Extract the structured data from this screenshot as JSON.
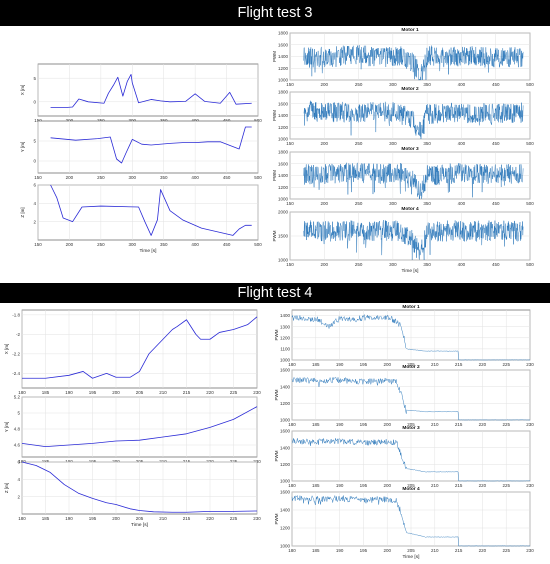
{
  "titles": {
    "test3": "Flight test 3",
    "test4": "Flight test 4"
  },
  "colors": {
    "position_line": "#2b2bd6",
    "motor_line": "#1f6fb6",
    "banner_bg": "#000000",
    "banner_text": "#ffffff"
  },
  "chart_data": [
    {
      "type": "line",
      "group": "test3",
      "ylabel": "X [m]",
      "xlim": [
        150,
        500
      ],
      "ylim": [
        -3,
        8
      ],
      "xticks": [
        150,
        200,
        250,
        300,
        350,
        400,
        450,
        500
      ],
      "yticks": [
        0,
        5
      ],
      "x": [
        170,
        195,
        205,
        215,
        230,
        255,
        262,
        270,
        277,
        285,
        292,
        298,
        300,
        310,
        330,
        345,
        360,
        385,
        400,
        415,
        440,
        455,
        465,
        490
      ],
      "y": [
        -1.2,
        -1.2,
        -1.1,
        0.6,
        0,
        -0.3,
        1.8,
        3.5,
        5.2,
        1.2,
        4.3,
        5.8,
        4.0,
        -0.2,
        0.5,
        0.2,
        0,
        0.1,
        1.7,
        0.1,
        -0.3,
        2.0,
        -0.5,
        -0.3
      ]
    },
    {
      "type": "line",
      "group": "test3",
      "ylabel": "Y [m]",
      "xlim": [
        150,
        500
      ],
      "ylim": [
        -3,
        10
      ],
      "xticks": [
        150,
        200,
        250,
        300,
        350,
        400,
        450,
        500
      ],
      "yticks": [
        0,
        5
      ],
      "x": [
        170,
        210,
        245,
        265,
        275,
        283,
        290,
        300,
        315,
        330,
        360,
        380,
        400,
        420,
        440,
        470,
        480,
        490
      ],
      "y": [
        5.8,
        5.2,
        5.6,
        6.0,
        0.5,
        -0.5,
        2.0,
        5.4,
        4.2,
        4.0,
        4.4,
        4.6,
        4.6,
        4.8,
        4.8,
        3.0,
        8.5,
        8.5
      ]
    },
    {
      "type": "line",
      "group": "test3",
      "xlabel": "Time [s]",
      "ylabel": "Z [m]",
      "xlim": [
        150,
        500
      ],
      "ylim": [
        0,
        6
      ],
      "xticks": [
        150,
        200,
        250,
        300,
        350,
        400,
        450,
        500
      ],
      "yticks": [
        2,
        4,
        6
      ],
      "x": [
        170,
        180,
        190,
        205,
        220,
        250,
        310,
        320,
        330,
        340,
        345,
        360,
        380,
        410,
        460,
        470,
        480,
        490
      ],
      "y": [
        6,
        4.6,
        2.4,
        2.0,
        3.6,
        3.7,
        3.6,
        2.0,
        0.5,
        2.2,
        5.5,
        3.2,
        2.2,
        1.3,
        0.5,
        1.2,
        1.6,
        1.6
      ]
    },
    {
      "type": "line",
      "group": "test3",
      "title": "Motor 1",
      "ylabel": "PWM",
      "xlim": [
        150,
        500
      ],
      "ylim": [
        1000,
        1800
      ],
      "xticks": [
        150,
        200,
        250,
        300,
        350,
        400,
        450,
        500
      ],
      "yticks": [
        1000,
        1200,
        1400,
        1600,
        1800
      ],
      "x": [
        170,
        210,
        250,
        280,
        310,
        330,
        340,
        350,
        380,
        420,
        460,
        490
      ],
      "y": [
        1380,
        1400,
        1420,
        1390,
        1410,
        1300,
        1050,
        1420,
        1390,
        1410,
        1380,
        1400
      ]
    },
    {
      "type": "line",
      "group": "test3",
      "title": "Motor 2",
      "ylabel": "PWM",
      "xlim": [
        150,
        500
      ],
      "ylim": [
        1000,
        1800
      ],
      "xticks": [
        150,
        200,
        250,
        300,
        350,
        400,
        450,
        500
      ],
      "yticks": [
        1000,
        1200,
        1400,
        1600,
        1800
      ],
      "x": [
        170,
        210,
        250,
        280,
        310,
        330,
        340,
        350,
        380,
        420,
        460,
        490
      ],
      "y": [
        1480,
        1460,
        1450,
        1470,
        1460,
        1300,
        1100,
        1430,
        1440,
        1450,
        1440,
        1450
      ]
    },
    {
      "type": "line",
      "group": "test3",
      "title": "Motor 3",
      "ylabel": "PWM",
      "xlim": [
        150,
        500
      ],
      "ylim": [
        1000,
        1800
      ],
      "xticks": [
        150,
        200,
        250,
        300,
        350,
        400,
        450,
        500
      ],
      "yticks": [
        1000,
        1200,
        1400,
        1600,
        1800
      ],
      "x": [
        170,
        210,
        250,
        280,
        310,
        330,
        340,
        350,
        380,
        420,
        460,
        490
      ],
      "y": [
        1420,
        1440,
        1450,
        1430,
        1450,
        1300,
        1100,
        1400,
        1430,
        1440,
        1420,
        1430
      ]
    },
    {
      "type": "line",
      "group": "test3",
      "title": "Motor 4",
      "xlabel": "Time [s]",
      "ylabel": "PWM",
      "xlim": [
        150,
        500
      ],
      "ylim": [
        1000,
        2000
      ],
      "xticks": [
        150,
        200,
        250,
        300,
        350,
        400,
        450,
        500
      ],
      "yticks": [
        1000,
        1500,
        2000
      ],
      "x": [
        170,
        210,
        250,
        280,
        310,
        330,
        340,
        350,
        380,
        420,
        460,
        490
      ],
      "y": [
        1620,
        1600,
        1610,
        1620,
        1600,
        1400,
        1100,
        1580,
        1610,
        1600,
        1620,
        1600
      ]
    },
    {
      "type": "line",
      "group": "test4",
      "ylabel": "X [m]",
      "xlim": [
        180,
        230
      ],
      "ylim": [
        -2.55,
        -1.75
      ],
      "xticks": [
        180,
        185,
        190,
        195,
        200,
        205,
        210,
        215,
        220,
        225,
        230
      ],
      "yticks": [
        -2.4,
        -2.2,
        -2,
        -1.8
      ],
      "x": [
        180,
        185,
        190,
        193,
        195,
        198,
        200,
        203,
        205,
        207,
        210,
        212,
        213,
        215,
        217,
        218,
        220,
        222,
        225,
        228,
        230
      ],
      "y": [
        -2.45,
        -2.45,
        -2.42,
        -2.38,
        -2.45,
        -2.4,
        -2.44,
        -2.44,
        -2.38,
        -2.2,
        -2.05,
        -1.95,
        -1.92,
        -1.85,
        -2.0,
        -2.05,
        -2.05,
        -1.98,
        -1.95,
        -1.9,
        -1.82
      ]
    },
    {
      "type": "line",
      "group": "test4",
      "ylabel": "Y [m]",
      "xlim": [
        180,
        230
      ],
      "ylim": [
        4.45,
        5.2
      ],
      "xticks": [
        180,
        185,
        190,
        195,
        200,
        205,
        210,
        215,
        220,
        225,
        230
      ],
      "yticks": [
        4.6,
        4.8,
        5,
        5.2
      ],
      "x": [
        180,
        185,
        190,
        195,
        200,
        205,
        210,
        215,
        220,
        225,
        230
      ],
      "y": [
        4.62,
        4.58,
        4.6,
        4.62,
        4.65,
        4.66,
        4.7,
        4.74,
        4.82,
        4.92,
        5.08
      ]
    },
    {
      "type": "line",
      "group": "test4",
      "xlabel": "Time [s]",
      "ylabel": "Z [m]",
      "xlim": [
        180,
        230
      ],
      "ylim": [
        0,
        6
      ],
      "xticks": [
        180,
        185,
        190,
        195,
        200,
        205,
        210,
        215,
        220,
        225,
        230
      ],
      "yticks": [
        2,
        4,
        6
      ],
      "x": [
        180,
        183,
        186,
        189,
        192,
        195,
        198,
        200,
        203,
        205,
        208,
        212,
        215,
        220,
        225,
        230
      ],
      "y": [
        6,
        5.6,
        4.8,
        3.4,
        2.4,
        1.8,
        1.3,
        1.1,
        0.6,
        0.4,
        0.25,
        0.2,
        0.2,
        0.3,
        0.3,
        0.35
      ]
    },
    {
      "type": "line",
      "group": "test4",
      "title": "Motor 1",
      "ylabel": "PWM",
      "xlim": [
        180,
        230
      ],
      "ylim": [
        1000,
        1450
      ],
      "xticks": [
        180,
        185,
        190,
        195,
        200,
        205,
        210,
        215,
        220,
        225,
        230
      ],
      "yticks": [
        1000,
        1100,
        1200,
        1300,
        1400
      ],
      "x": [
        180,
        185,
        188,
        190,
        193,
        196,
        200,
        202,
        203,
        204,
        208,
        210,
        214.9,
        215,
        230
      ],
      "y": [
        1380,
        1370,
        1300,
        1380,
        1360,
        1390,
        1380,
        1350,
        1300,
        1100,
        1080,
        1080,
        1080,
        1000,
        1000
      ]
    },
    {
      "type": "line",
      "group": "test4",
      "title": "Motor 2",
      "ylabel": "PWM",
      "xlim": [
        180,
        230
      ],
      "ylim": [
        1000,
        1600
      ],
      "xticks": [
        180,
        185,
        190,
        195,
        200,
        205,
        210,
        215,
        220,
        225,
        230
      ],
      "yticks": [
        1000,
        1200,
        1400,
        1600
      ],
      "x": [
        180,
        185,
        190,
        195,
        200,
        202,
        203,
        204,
        208,
        210,
        214.9,
        215,
        230
      ],
      "y": [
        1480,
        1470,
        1480,
        1460,
        1470,
        1460,
        1300,
        1120,
        1100,
        1100,
        1100,
        1000,
        1000
      ]
    },
    {
      "type": "line",
      "group": "test4",
      "title": "Motor 3",
      "ylabel": "PWM",
      "xlim": [
        180,
        230
      ],
      "ylim": [
        1000,
        1600
      ],
      "xticks": [
        180,
        185,
        190,
        195,
        200,
        205,
        210,
        215,
        220,
        225,
        230
      ],
      "yticks": [
        1000,
        1200,
        1400,
        1600
      ],
      "x": [
        180,
        185,
        190,
        195,
        200,
        202,
        203,
        204,
        208,
        210,
        214.9,
        215,
        230
      ],
      "y": [
        1480,
        1470,
        1480,
        1460,
        1470,
        1460,
        1300,
        1150,
        1110,
        1110,
        1110,
        1000,
        1000
      ]
    },
    {
      "type": "line",
      "group": "test4",
      "title": "Motor 4",
      "xlabel": "Time [s]",
      "ylabel": "PWM",
      "xlim": [
        180,
        230
      ],
      "ylim": [
        1000,
        1600
      ],
      "xticks": [
        180,
        185,
        190,
        195,
        200,
        205,
        210,
        215,
        220,
        225,
        230
      ],
      "yticks": [
        1000,
        1200,
        1400,
        1600
      ],
      "x": [
        180,
        185,
        190,
        195,
        200,
        202,
        203,
        204,
        208,
        210,
        214.9,
        215,
        230
      ],
      "y": [
        1530,
        1520,
        1530,
        1510,
        1520,
        1500,
        1350,
        1150,
        1100,
        1100,
        1100,
        1000,
        1000
      ]
    }
  ]
}
